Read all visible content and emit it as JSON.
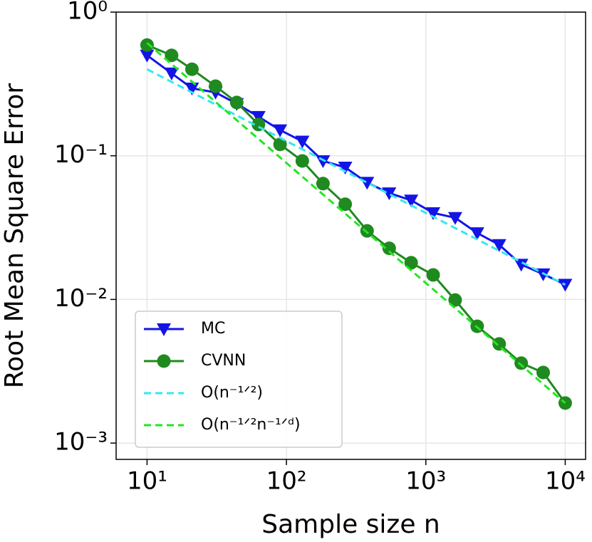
{
  "chart_data": {
    "type": "line",
    "xscale": "log",
    "yscale": "log",
    "grid": true,
    "legend": "lower left",
    "xlabel": "Sample size n",
    "ylabel": "Root Mean Square Error",
    "xlim": [
      6,
      14000
    ],
    "ylim": [
      0.00077,
      1
    ],
    "xticks": [
      {
        "value": 10,
        "label": "10¹"
      },
      {
        "value": 100,
        "label": "10²"
      },
      {
        "value": 1000,
        "label": "10³"
      },
      {
        "value": 10000,
        "label": "10⁴"
      }
    ],
    "yticks": [
      {
        "value": 0.001,
        "label": "10⁻³"
      },
      {
        "value": 0.01,
        "label": "10⁻²"
      },
      {
        "value": 0.1,
        "label": "10⁻¹"
      },
      {
        "value": 1,
        "label": "10⁰"
      }
    ],
    "series": [
      {
        "name": "MC",
        "color": "#1414e6",
        "marker": "triangle-down",
        "dashed": false,
        "x": [
          10,
          15,
          21,
          31,
          44,
          63,
          90,
          130,
          183,
          264,
          379,
          546,
          785,
          1129,
          1624,
          2336,
          3360,
          4833,
          6952,
          10000
        ],
        "values": [
          0.5,
          0.375,
          0.295,
          0.276,
          0.23,
          0.187,
          0.151,
          0.126,
          0.092,
          0.083,
          0.065,
          0.055,
          0.049,
          0.04,
          0.037,
          0.029,
          0.024,
          0.0175,
          0.015,
          0.0127
        ]
      },
      {
        "name": "CVNN",
        "color": "#1f8a1f",
        "marker": "circle",
        "dashed": false,
        "x": [
          10,
          15,
          21,
          31,
          44,
          63,
          90,
          130,
          183,
          264,
          379,
          546,
          785,
          1129,
          1624,
          2336,
          3360,
          4833,
          6952,
          10000
        ],
        "values": [
          0.59,
          0.5,
          0.4,
          0.305,
          0.235,
          0.165,
          0.12,
          0.092,
          0.064,
          0.046,
          0.03,
          0.0227,
          0.018,
          0.0148,
          0.0099,
          0.0065,
          0.0049,
          0.0036,
          0.0031,
          0.0019
        ]
      },
      {
        "name": "O(n⁻¹ᐟ²)",
        "color": "#33e8f0",
        "marker": "none",
        "dashed": true,
        "x": [
          10,
          10000
        ],
        "values": [
          0.4,
          0.01265
        ]
      },
      {
        "name": "O(n⁻¹ᐟ²n⁻¹ᐟᵈ)",
        "color": "#22e622",
        "marker": "none",
        "dashed": true,
        "x": [
          10,
          10000
        ],
        "values": [
          0.61,
          0.0019
        ]
      }
    ]
  }
}
